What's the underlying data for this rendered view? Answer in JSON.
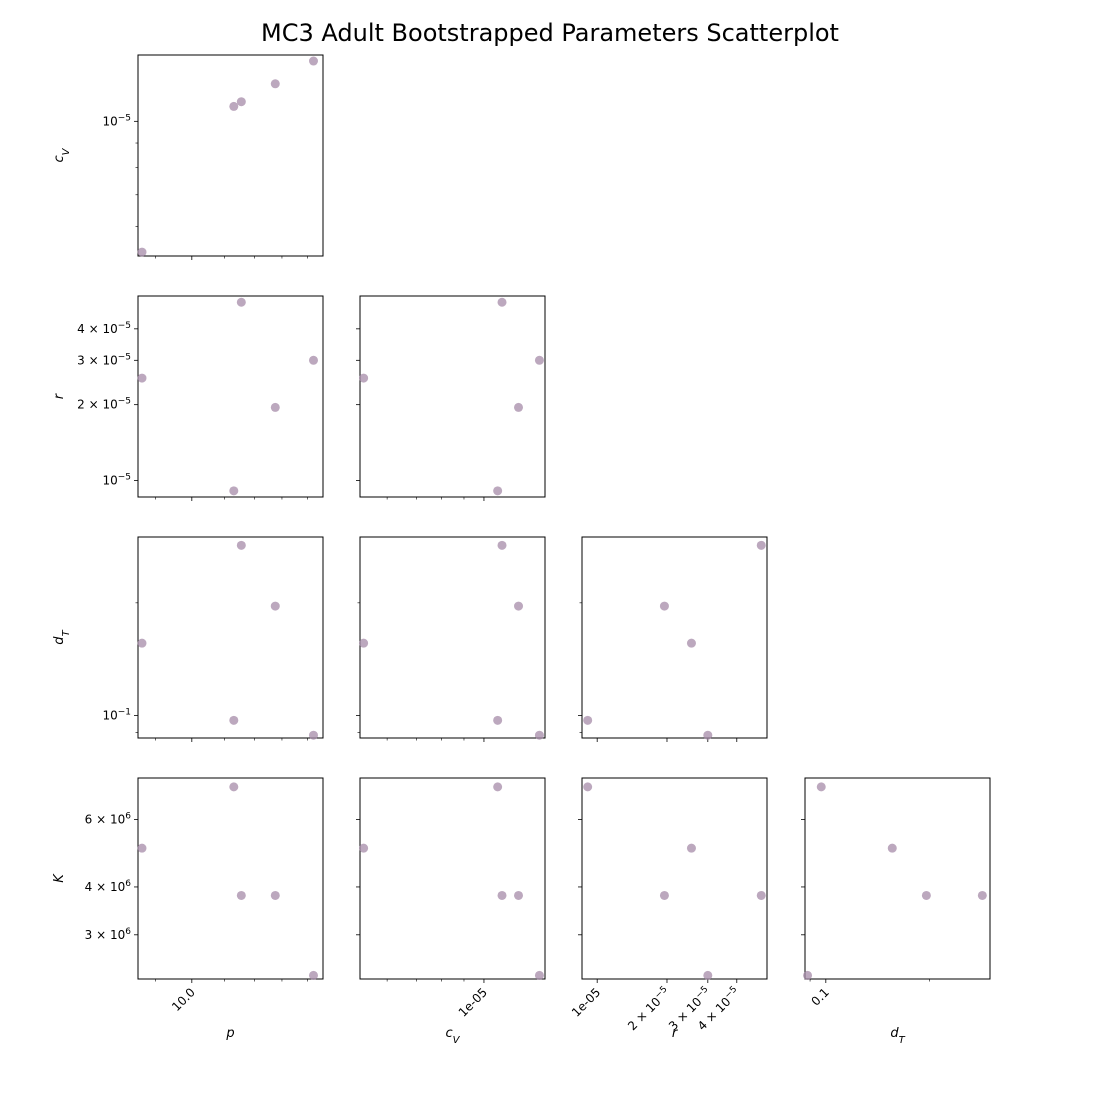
{
  "chart_data": {
    "type": "scatter",
    "title": "MC3 Adult Bootstrapped Parameters Scatterplot",
    "layout": "corner-matrix",
    "marker_color": "#a58ba8",
    "marker_alpha": 0.75,
    "log_axes": true,
    "variables": [
      {
        "key": "p",
        "label": "p",
        "sub": "",
        "values": [
          8.65,
          11.3,
          11.55,
          12.75,
          14.25
        ],
        "range": [
          8.55,
          14.65
        ],
        "major_ticks": [
          {
            "value": 10.0,
            "label": "10.0"
          }
        ],
        "minor_ticks": [
          9.0,
          11.0,
          12.0,
          13.0,
          14.0
        ]
      },
      {
        "key": "cV",
        "label": "c",
        "sub": "V",
        "values": [
          5.3e-06,
          1.075e-05,
          1.1e-05,
          1.2e-05,
          1.34e-05
        ],
        "range": [
          5.2e-06,
          1.38e-05
        ],
        "major_ticks": [
          {
            "value": 1e-05,
            "label": "1e-05",
            "y_label": "10",
            "y_sup": "−5"
          }
        ],
        "minor_ticks": [
          6e-06,
          7e-06,
          8e-06,
          9e-06,
          2e-05
        ]
      },
      {
        "key": "r",
        "label": "r",
        "sub": "",
        "values": [
          9.1e-06,
          1.95e-05,
          2.55e-05,
          3e-05,
          5.1e-05
        ],
        "range": [
          8.6e-06,
          5.4e-05
        ],
        "major_ticks": [
          {
            "value": 1e-05,
            "label": "1e-05",
            "y_label": "10",
            "y_sup": "−5"
          },
          {
            "value": 2e-05,
            "label": "2 × 10",
            "label_sup": "−5",
            "y_label": "2 × 10",
            "y_sup": "−5"
          },
          {
            "value": 3e-05,
            "label": "3 × 10",
            "label_sup": "−5",
            "y_label": "3 × 10",
            "y_sup": "−5"
          },
          {
            "value": 4e-05,
            "label": "4 × 10",
            "label_sup": "−5",
            "y_label": "4 × 10",
            "y_sup": "−5"
          }
        ],
        "minor_ticks": []
      },
      {
        "key": "dT",
        "label": "d",
        "sub": "T",
        "values": [
          0.0885,
          0.097,
          0.156,
          0.196,
          0.285
        ],
        "range": [
          0.087,
          0.3
        ],
        "major_ticks": [
          {
            "value": 0.1,
            "label": "0.1",
            "y_label": "10",
            "y_sup": "−1"
          }
        ],
        "minor_ticks": [
          0.09,
          0.2
        ]
      },
      {
        "key": "K",
        "label": "K",
        "sub": "",
        "values": [
          2350000.0,
          3800000.0,
          3800000.0,
          5050000.0,
          7300000.0
        ],
        "range": [
          2300000.0,
          7700000.0
        ],
        "major_ticks": [
          {
            "value": 3000000.0,
            "label": "3 × 10",
            "label_sup": "6",
            "y_label": "3 × 10",
            "y_sup": "6"
          },
          {
            "value": 4000000.0,
            "label": "4 × 10",
            "label_sup": "6",
            "y_label": "4 × 10",
            "y_sup": "6"
          },
          {
            "value": 6000000.0,
            "label": "6 × 10",
            "label_sup": "6",
            "y_label": "6 × 10",
            "y_sup": "6"
          }
        ],
        "minor_ticks": []
      }
    ],
    "samples": [
      {
        "p": 8.65,
        "cV": 5.3e-06,
        "r": 2.55e-05,
        "dT": 0.156,
        "K": 5050000.0
      },
      {
        "p": 11.3,
        "cV": 1.075e-05,
        "r": 9.1e-06,
        "dT": 0.097,
        "K": 7300000.0
      },
      {
        "p": 11.55,
        "cV": 1.1e-05,
        "r": 5.1e-05,
        "dT": 0.285,
        "K": 3800000.0
      },
      {
        "p": 12.75,
        "cV": 1.2e-05,
        "r": 1.95e-05,
        "dT": 0.196,
        "K": 3800000.0
      },
      {
        "p": 14.25,
        "cV": 1.34e-05,
        "r": 3e-05,
        "dT": 0.0885,
        "K": 2350000.0
      }
    ]
  }
}
